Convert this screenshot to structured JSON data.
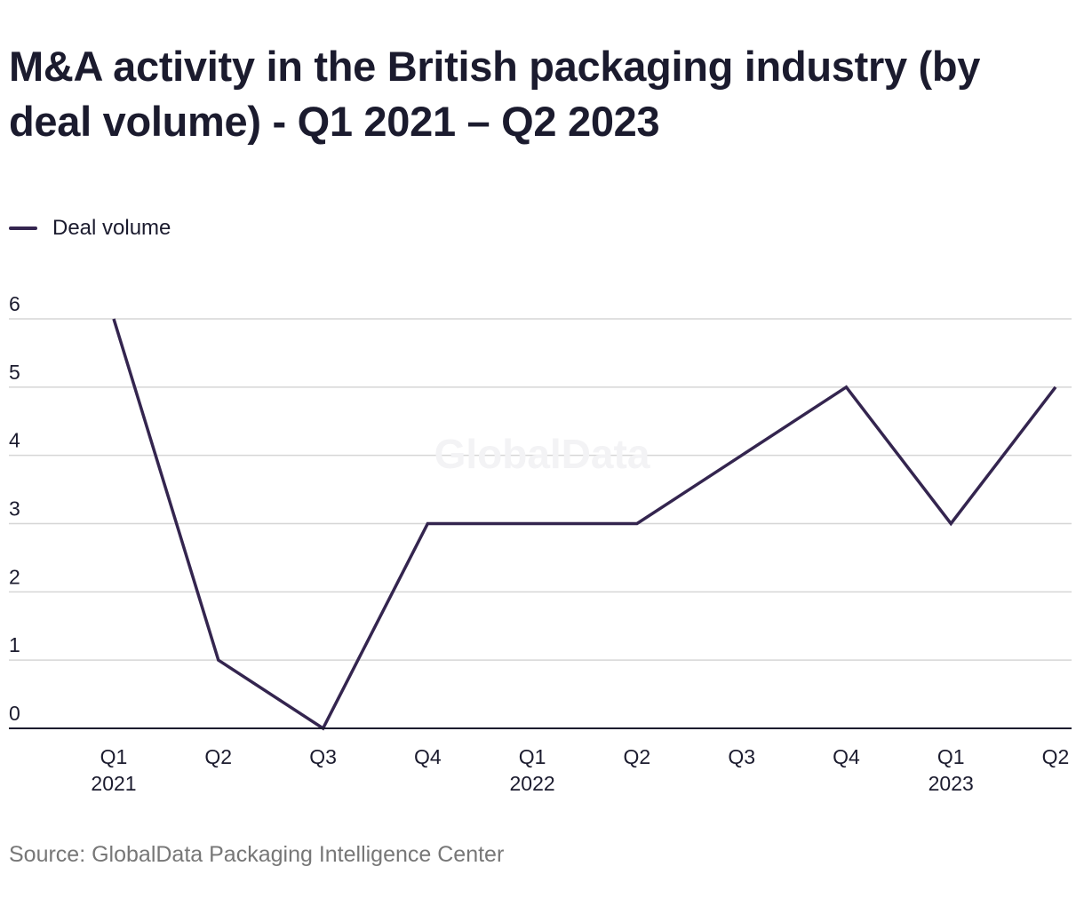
{
  "chart_data": {
    "type": "line",
    "title": "M&A activity in the British packaging industry (by deal volume) - Q1 2021 – Q2 2023",
    "xlabel": "",
    "ylabel": "",
    "categories": [
      {
        "quarter": "Q1",
        "year": "2021"
      },
      {
        "quarter": "Q2",
        "year": ""
      },
      {
        "quarter": "Q3",
        "year": ""
      },
      {
        "quarter": "Q4",
        "year": ""
      },
      {
        "quarter": "Q1",
        "year": "2022"
      },
      {
        "quarter": "Q2",
        "year": ""
      },
      {
        "quarter": "Q3",
        "year": ""
      },
      {
        "quarter": "Q4",
        "year": ""
      },
      {
        "quarter": "Q1",
        "year": "2023"
      },
      {
        "quarter": "Q2",
        "year": ""
      }
    ],
    "series": [
      {
        "name": "Deal volume",
        "values": [
          6,
          1,
          0,
          3,
          3,
          3,
          4,
          5,
          3,
          5
        ],
        "color": "#34254f"
      }
    ],
    "ylim": [
      0,
      6
    ],
    "yticks": [
      "0",
      "1",
      "2",
      "3",
      "4",
      "5",
      "6"
    ],
    "grid": true,
    "legend_position": "top-left",
    "watermark": "GlobalData",
    "source": "Source: GlobalData Packaging Intelligence Center"
  }
}
